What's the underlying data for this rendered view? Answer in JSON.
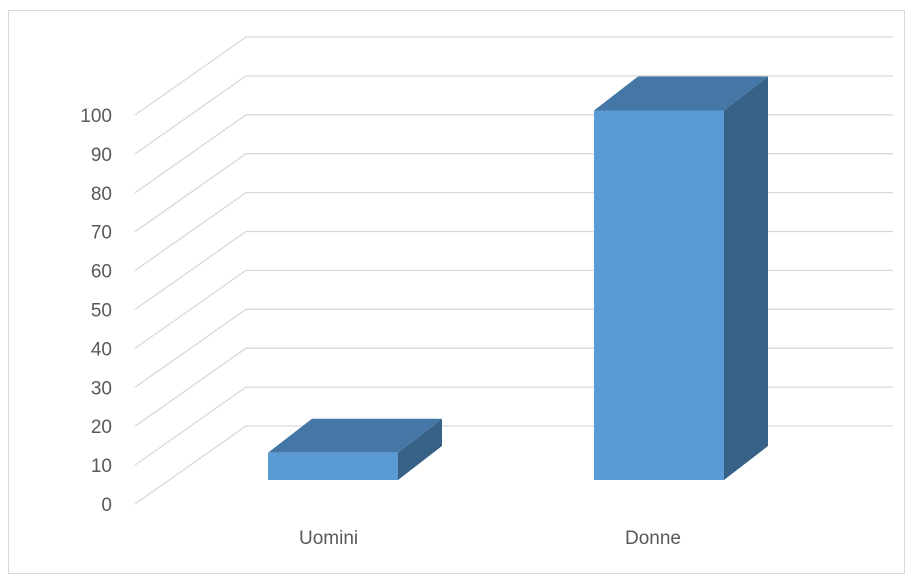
{
  "chart_data": {
    "type": "bar",
    "style": "3d-column",
    "categories": [
      "Uomini",
      "Donne"
    ],
    "values": [
      7,
      95
    ],
    "title": "",
    "xlabel": "",
    "ylabel": "",
    "ylim": [
      0,
      100
    ],
    "yticks": [
      "0",
      "10",
      "20",
      "30",
      "40",
      "50",
      "60",
      "70",
      "80",
      "90",
      "100"
    ],
    "grid": true,
    "legend": "none",
    "colors": {
      "bar_front": "#5b9bd5",
      "bar_top": "#4477a6",
      "bar_side": "#376186",
      "grid": "#d9d9d9",
      "text": "#595959"
    }
  }
}
